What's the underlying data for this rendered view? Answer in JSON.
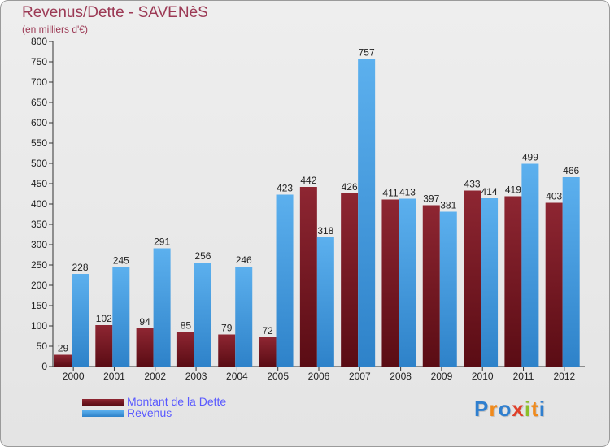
{
  "title": "Revenus/Dette - SAVENèS",
  "subtitle": "(en milliers d'€)",
  "logo": {
    "text": "Proxiti",
    "letters": [
      "P",
      "r",
      "o",
      "x",
      "i",
      "t",
      "i"
    ],
    "colors": [
      "#2f7fcf",
      "#f08a1c",
      "#2f7fcf",
      "#e0402a",
      "#8cbf2a",
      "#f08a1c",
      "#2f7fcf"
    ]
  },
  "colors": {
    "dette": "#7a1a24",
    "revenus": "#4a9fe0",
    "title": "#9c3a55",
    "legend_text": "#5a5aff",
    "axis": "#333333"
  },
  "chart_data": {
    "type": "bar",
    "title": "Revenus/Dette - SAVENèS",
    "ylabel": "(en milliers d'€)",
    "xlabel": "",
    "ylim": [
      0,
      800
    ],
    "yticks": [
      0,
      50,
      100,
      150,
      200,
      250,
      300,
      350,
      400,
      450,
      500,
      550,
      600,
      650,
      700,
      750,
      800
    ],
    "grid": false,
    "legend_position": "bottom-left",
    "categories": [
      "2000",
      "2001",
      "2002",
      "2003",
      "2004",
      "2005",
      "2006",
      "2007",
      "2008",
      "2009",
      "2010",
      "2011",
      "2012"
    ],
    "series": [
      {
        "name": "Montant de la Dette",
        "key": "dette",
        "values": [
          29,
          102,
          94,
          85,
          79,
          72,
          442,
          426,
          411,
          397,
          433,
          419,
          403
        ]
      },
      {
        "name": "Revenus",
        "key": "revenus",
        "values": [
          228,
          245,
          291,
          256,
          246,
          423,
          318,
          757,
          413,
          381,
          414,
          499,
          466
        ]
      }
    ]
  }
}
